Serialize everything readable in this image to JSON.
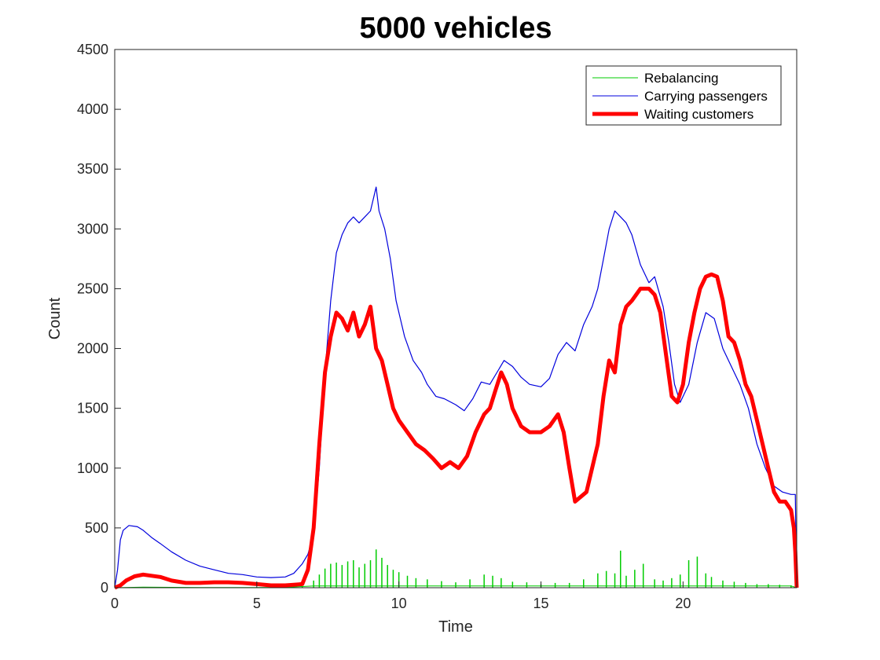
{
  "chart_data": {
    "type": "line",
    "title": "5000 vehicles",
    "xlabel": "Time",
    "ylabel": "Count",
    "xlim": [
      0,
      24
    ],
    "ylim": [
      0,
      4500
    ],
    "xticks": [
      0,
      5,
      10,
      15,
      20
    ],
    "yticks": [
      0,
      500,
      1000,
      1500,
      2000,
      2500,
      3000,
      3500,
      4000,
      4500
    ],
    "grid": false,
    "legend_position": "top-right",
    "series": [
      {
        "name": "Rebalancing",
        "color": "#00cc00",
        "style": "spikes",
        "x": [
          0,
          1,
          2,
          3,
          4,
          5,
          6,
          6.6,
          7.0,
          7.2,
          7.4,
          7.6,
          7.8,
          8.0,
          8.2,
          8.4,
          8.6,
          8.8,
          9.0,
          9.2,
          9.4,
          9.6,
          9.8,
          10.0,
          10.3,
          10.6,
          11.0,
          11.5,
          12.0,
          12.5,
          13.0,
          13.3,
          13.6,
          14.0,
          14.5,
          15.0,
          15.5,
          16.0,
          16.5,
          17.0,
          17.3,
          17.6,
          17.8,
          18.0,
          18.3,
          18.6,
          19.0,
          19.3,
          19.6,
          19.9,
          20.2,
          20.5,
          20.8,
          21.0,
          21.4,
          21.8,
          22.2,
          22.6,
          23.0,
          23.4,
          23.8,
          24
        ],
        "values": [
          0,
          5,
          3,
          2,
          2,
          2,
          3,
          10,
          60,
          110,
          160,
          200,
          210,
          190,
          220,
          230,
          170,
          200,
          230,
          320,
          250,
          190,
          150,
          130,
          100,
          80,
          70,
          55,
          45,
          70,
          110,
          100,
          80,
          50,
          45,
          30,
          40,
          40,
          70,
          120,
          140,
          120,
          310,
          100,
          150,
          200,
          70,
          60,
          80,
          110,
          230,
          260,
          120,
          90,
          60,
          50,
          40,
          30,
          30,
          25,
          20,
          0
        ]
      },
      {
        "name": "Carrying passengers",
        "color": "#0000dd",
        "style": "line",
        "x": [
          0,
          0.1,
          0.2,
          0.3,
          0.5,
          0.8,
          1.0,
          1.3,
          1.6,
          2.0,
          2.5,
          3.0,
          3.5,
          4.0,
          4.5,
          5.0,
          5.5,
          6.0,
          6.3,
          6.6,
          6.8,
          7.0,
          7.2,
          7.4,
          7.6,
          7.8,
          8.0,
          8.2,
          8.4,
          8.6,
          8.8,
          9.0,
          9.1,
          9.2,
          9.3,
          9.5,
          9.7,
          9.9,
          10.2,
          10.5,
          10.8,
          11.0,
          11.3,
          11.6,
          12.0,
          12.3,
          12.6,
          12.9,
          13.2,
          13.5,
          13.7,
          14.0,
          14.3,
          14.6,
          15.0,
          15.3,
          15.6,
          15.9,
          16.2,
          16.5,
          16.8,
          17.0,
          17.2,
          17.4,
          17.6,
          17.8,
          18.0,
          18.2,
          18.5,
          18.8,
          19.0,
          19.3,
          19.5,
          19.7,
          19.9,
          20.2,
          20.5,
          20.8,
          21.1,
          21.4,
          21.7,
          22.0,
          22.3,
          22.6,
          22.9,
          23.2,
          23.5,
          23.8,
          23.95,
          24
        ],
        "values": [
          0,
          150,
          400,
          480,
          520,
          510,
          480,
          420,
          370,
          300,
          230,
          180,
          150,
          120,
          110,
          90,
          85,
          90,
          120,
          200,
          280,
          450,
          1000,
          1800,
          2400,
          2800,
          2950,
          3050,
          3100,
          3050,
          3100,
          3150,
          3250,
          3350,
          3150,
          3000,
          2750,
          2400,
          2100,
          1900,
          1800,
          1700,
          1600,
          1580,
          1530,
          1480,
          1580,
          1720,
          1700,
          1820,
          1900,
          1850,
          1760,
          1700,
          1680,
          1750,
          1950,
          2050,
          1980,
          2200,
          2350,
          2500,
          2750,
          3000,
          3150,
          3100,
          3050,
          2950,
          2700,
          2550,
          2600,
          2350,
          2050,
          1700,
          1550,
          1700,
          2050,
          2300,
          2250,
          2000,
          1850,
          1700,
          1500,
          1200,
          1000,
          850,
          800,
          780,
          780,
          0
        ]
      },
      {
        "name": "Waiting customers",
        "color": "#ff0000",
        "style": "thick",
        "x": [
          0,
          0.2,
          0.4,
          0.7,
          1.0,
          1.3,
          1.6,
          2.0,
          2.5,
          3.0,
          3.5,
          4.0,
          4.5,
          5.0,
          5.5,
          6.0,
          6.3,
          6.6,
          6.8,
          7.0,
          7.2,
          7.4,
          7.6,
          7.8,
          8.0,
          8.2,
          8.4,
          8.6,
          8.8,
          9.0,
          9.2,
          9.4,
          9.6,
          9.8,
          10.0,
          10.3,
          10.6,
          10.9,
          11.2,
          11.5,
          11.8,
          12.1,
          12.4,
          12.7,
          13.0,
          13.2,
          13.4,
          13.6,
          13.8,
          14.0,
          14.3,
          14.6,
          15.0,
          15.3,
          15.6,
          15.8,
          16.0,
          16.2,
          16.4,
          16.6,
          16.8,
          17.0,
          17.2,
          17.4,
          17.6,
          17.8,
          18.0,
          18.2,
          18.5,
          18.8,
          19.0,
          19.2,
          19.4,
          19.6,
          19.8,
          20.0,
          20.2,
          20.4,
          20.6,
          20.8,
          21.0,
          21.2,
          21.4,
          21.6,
          21.8,
          22.0,
          22.2,
          22.4,
          22.6,
          22.8,
          23.0,
          23.2,
          23.4,
          23.6,
          23.8,
          23.9,
          23.95,
          24
        ],
        "values": [
          0,
          20,
          60,
          95,
          110,
          100,
          90,
          60,
          40,
          40,
          45,
          45,
          40,
          30,
          20,
          20,
          25,
          30,
          150,
          500,
          1200,
          1800,
          2100,
          2300,
          2250,
          2150,
          2300,
          2100,
          2200,
          2350,
          2000,
          1900,
          1700,
          1500,
          1400,
          1300,
          1200,
          1150,
          1080,
          1000,
          1050,
          1000,
          1100,
          1300,
          1450,
          1500,
          1650,
          1800,
          1700,
          1500,
          1350,
          1300,
          1300,
          1350,
          1450,
          1300,
          1000,
          720,
          760,
          800,
          1000,
          1200,
          1600,
          1900,
          1800,
          2200,
          2350,
          2400,
          2500,
          2500,
          2450,
          2300,
          1950,
          1600,
          1550,
          1700,
          2050,
          2300,
          2500,
          2600,
          2620,
          2600,
          2400,
          2100,
          2050,
          1900,
          1700,
          1600,
          1400,
          1200,
          1000,
          800,
          720,
          720,
          650,
          500,
          300,
          0
        ]
      }
    ]
  }
}
